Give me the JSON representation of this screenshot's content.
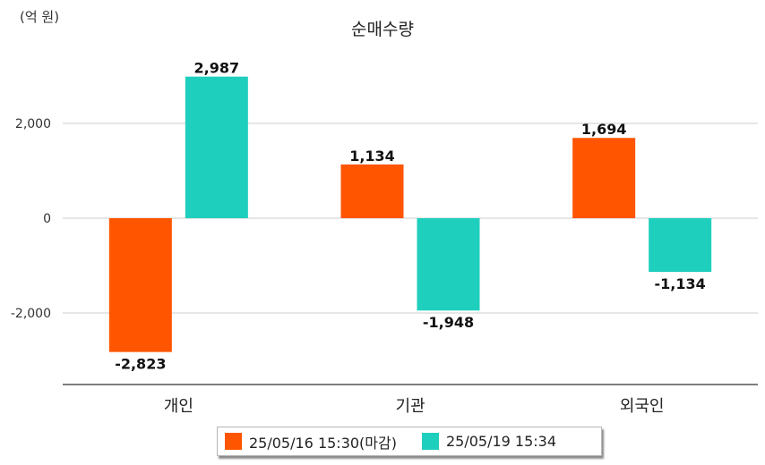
{
  "unit_label": "(억 원)",
  "colors": {
    "series1": "#ff5500",
    "series2": "#1fcfbd",
    "grid": "#cccccc",
    "axis": "#555555"
  },
  "chart_data": {
    "type": "bar",
    "title": "순매수량",
    "categories": [
      "개인",
      "기관",
      "외국인"
    ],
    "series": [
      {
        "name": "25/05/16 15:30(마감)",
        "values": [
          -2823,
          1134,
          1694
        ],
        "labels": [
          "-2,823",
          "1,134",
          "1,694"
        ]
      },
      {
        "name": "25/05/19 15:34",
        "values": [
          2987,
          -1948,
          -1134
        ],
        "labels": [
          "2,987",
          "-1,948",
          "-1,134"
        ]
      }
    ],
    "yticks": [
      2000,
      0,
      -2000
    ],
    "ytick_labels": [
      "2,000",
      "0",
      "-2,000"
    ],
    "ylim": [
      -3500,
      3200
    ],
    "grid": true,
    "legend_position": "bottom"
  }
}
